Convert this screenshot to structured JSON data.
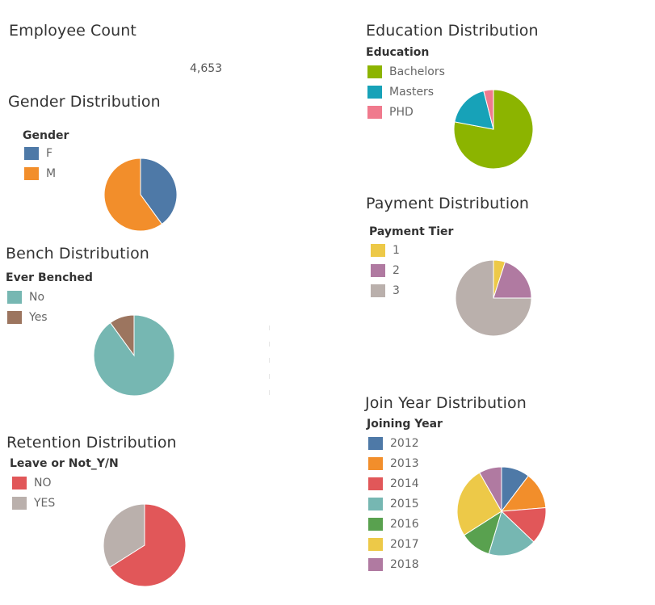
{
  "employee_count": {
    "title": "Employee Count",
    "value": "4,653"
  },
  "chart_data": [
    {
      "id": "gender",
      "type": "pie",
      "title": "Gender Distribution",
      "legend_title": "Gender",
      "categories": [
        "F",
        "M"
      ],
      "values": [
        40,
        60
      ],
      "colors": [
        "#4e79a7",
        "#f28e2b"
      ]
    },
    {
      "id": "bench",
      "type": "pie",
      "title": "Bench Distribution",
      "legend_title": "Ever Benched",
      "categories": [
        "No",
        "Yes"
      ],
      "values": [
        90,
        10
      ],
      "colors": [
        "#76b7b2",
        "#9c755f"
      ]
    },
    {
      "id": "retention",
      "type": "pie",
      "title": "Retention Distribution",
      "legend_title": "Leave or Not_Y/N",
      "categories": [
        "NO",
        "YES"
      ],
      "values": [
        66,
        34
      ],
      "colors": [
        "#e15759",
        "#bab0ac"
      ]
    },
    {
      "id": "education",
      "type": "pie",
      "title": "Education Distribution",
      "legend_title": "Education",
      "categories": [
        "Bachelors",
        "Masters",
        "PHD"
      ],
      "values": [
        78,
        18,
        4
      ],
      "colors": [
        "#8cb400",
        "#17a2b8",
        "#f07a8d"
      ]
    },
    {
      "id": "payment",
      "type": "pie",
      "title": "Payment Distribution",
      "legend_title": "Payment Tier",
      "categories": [
        "1",
        "2",
        "3"
      ],
      "values": [
        5,
        20,
        75
      ],
      "colors": [
        "#edc948",
        "#b07aa1",
        "#bab0ac"
      ]
    },
    {
      "id": "joinyear",
      "type": "pie",
      "title": "Join Year Distribution",
      "legend_title": "Joining Year",
      "categories": [
        "2012",
        "2013",
        "2014",
        "2015",
        "2016",
        "2017",
        "2018"
      ],
      "values": [
        10,
        13,
        13,
        17,
        11,
        25,
        8
      ],
      "colors": [
        "#4e79a7",
        "#f28e2b",
        "#e15759",
        "#76b7b2",
        "#59a14f",
        "#edc948",
        "#b07aa1"
      ]
    }
  ]
}
